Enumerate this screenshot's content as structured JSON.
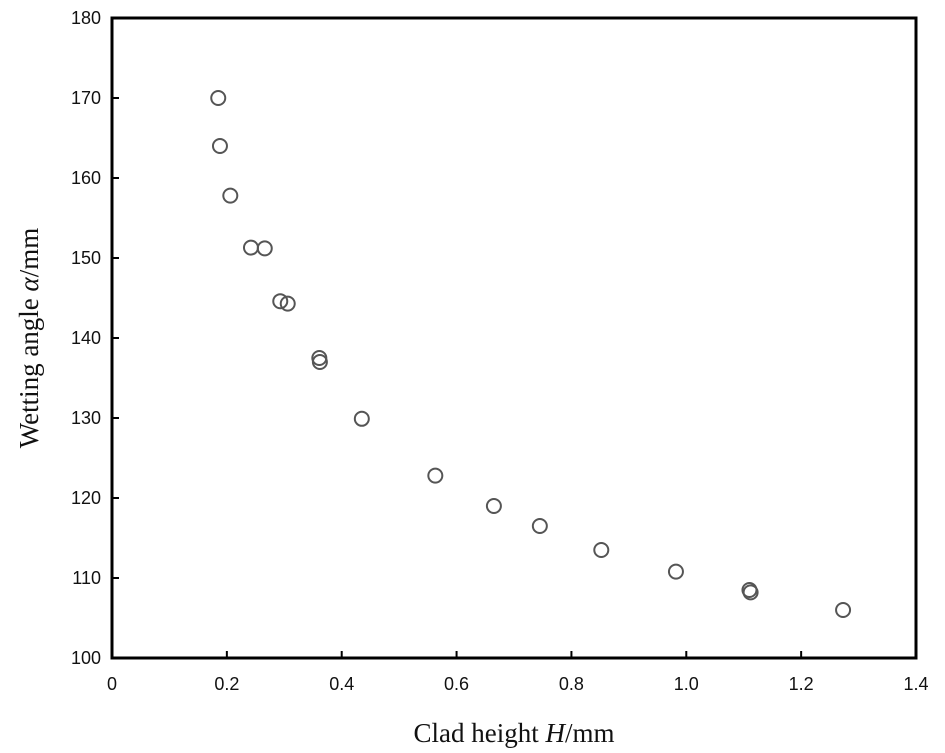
{
  "chart_data": {
    "type": "scatter",
    "title": "",
    "xlabel": {
      "prefix": "Clad height ",
      "var": "H",
      "suffix": "/mm"
    },
    "ylabel": {
      "prefix": "Wetting angle ",
      "var": "α",
      "suffix": "/mm"
    },
    "xlim": [
      0,
      1.4
    ],
    "ylim": [
      100,
      180
    ],
    "xticks": [
      0,
      0.2,
      0.4,
      0.6,
      0.8,
      1.0,
      1.2,
      1.4
    ],
    "xtick_labels": [
      "0",
      "0.2",
      "0.4",
      "0.6",
      "0.8",
      "1.0",
      "1.2",
      "1.4"
    ],
    "yticks": [
      100,
      110,
      120,
      130,
      140,
      150,
      160,
      170,
      180
    ],
    "ytick_labels": [
      "100",
      "110",
      "120",
      "130",
      "140",
      "150",
      "160",
      "170",
      "180"
    ],
    "grid": false,
    "marker": "open-circle",
    "marker_color": "#555555",
    "series": [
      {
        "points": [
          {
            "x": 0.185,
            "y": 170.0
          },
          {
            "x": 0.188,
            "y": 164.0
          },
          {
            "x": 0.206,
            "y": 157.8
          },
          {
            "x": 0.242,
            "y": 151.3
          },
          {
            "x": 0.266,
            "y": 151.2
          },
          {
            "x": 0.293,
            "y": 144.6
          },
          {
            "x": 0.306,
            "y": 144.3
          },
          {
            "x": 0.361,
            "y": 137.5
          },
          {
            "x": 0.362,
            "y": 137.0
          },
          {
            "x": 0.435,
            "y": 129.9
          },
          {
            "x": 0.563,
            "y": 122.8
          },
          {
            "x": 0.665,
            "y": 119.0
          },
          {
            "x": 0.745,
            "y": 116.5
          },
          {
            "x": 0.852,
            "y": 113.5
          },
          {
            "x": 0.982,
            "y": 110.8
          },
          {
            "x": 1.11,
            "y": 108.5
          },
          {
            "x": 1.112,
            "y": 108.2
          },
          {
            "x": 1.273,
            "y": 106.0
          }
        ]
      }
    ]
  }
}
